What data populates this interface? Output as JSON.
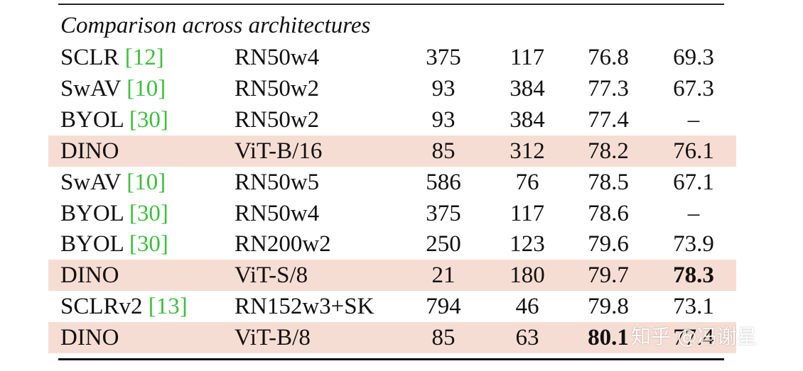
{
  "caption": "Comparison across architectures",
  "rows": [
    {
      "method": "SCLR ",
      "ref": "[12]",
      "ref_num": "12",
      "arch": "RN50w4",
      "params": "375",
      "ims": "117",
      "linear": "76.8",
      "knn": "69.3",
      "highlight": false,
      "bold_linear": false,
      "bold_knn": false
    },
    {
      "method": "SwAV ",
      "ref": "[10]",
      "ref_num": "10",
      "arch": "RN50w2",
      "params": "93",
      "ims": "384",
      "linear": "77.3",
      "knn": "67.3",
      "highlight": false,
      "bold_linear": false,
      "bold_knn": false
    },
    {
      "method": "BYOL ",
      "ref": "[30]",
      "ref_num": "30",
      "arch": "RN50w2",
      "params": "93",
      "ims": "384",
      "linear": "77.4",
      "knn": "–",
      "highlight": false,
      "bold_linear": false,
      "bold_knn": false
    },
    {
      "method": "DINO",
      "ref": "",
      "ref_num": "",
      "arch": "ViT-B/16",
      "params": "85",
      "ims": "312",
      "linear": "78.2",
      "knn": "76.1",
      "highlight": true,
      "bold_linear": false,
      "bold_knn": false
    },
    {
      "method": "SwAV ",
      "ref": "[10]",
      "ref_num": "10",
      "arch": "RN50w5",
      "params": "586",
      "ims": "76",
      "linear": "78.5",
      "knn": "67.1",
      "highlight": false,
      "bold_linear": false,
      "bold_knn": false
    },
    {
      "method": "BYOL ",
      "ref": "[30]",
      "ref_num": "30",
      "arch": "RN50w4",
      "params": "375",
      "ims": "117",
      "linear": "78.6",
      "knn": "–",
      "highlight": false,
      "bold_linear": false,
      "bold_knn": false
    },
    {
      "method": "BYOL ",
      "ref": "[30]",
      "ref_num": "30",
      "arch": "RN200w2",
      "params": "250",
      "ims": "123",
      "linear": "79.6",
      "knn": "73.9",
      "highlight": false,
      "bold_linear": false,
      "bold_knn": false
    },
    {
      "method": "DINO",
      "ref": "",
      "ref_num": "",
      "arch": "ViT-S/8",
      "params": "21",
      "ims": "180",
      "linear": "79.7",
      "knn": "78.3",
      "highlight": true,
      "bold_linear": false,
      "bold_knn": true
    },
    {
      "method": "SCLRv2 ",
      "ref": "[13]",
      "ref_num": "13",
      "arch": "RN152w3+SK",
      "params": "794",
      "ims": "46",
      "linear": "79.8",
      "knn": "73.1",
      "highlight": false,
      "bold_linear": false,
      "bold_knn": false
    },
    {
      "method": "DINO",
      "ref": "",
      "ref_num": "",
      "arch": "ViT-B/8",
      "params": "85",
      "ims": "63",
      "linear": "80.1",
      "knn": "77.4",
      "highlight": true,
      "bold_linear": true,
      "bold_knn": false
    }
  ],
  "watermark": "知乎 @冯谢星",
  "colors": {
    "highlight": "#f6ddd4",
    "reference": "#3dbf3d",
    "text": "#111111"
  }
}
